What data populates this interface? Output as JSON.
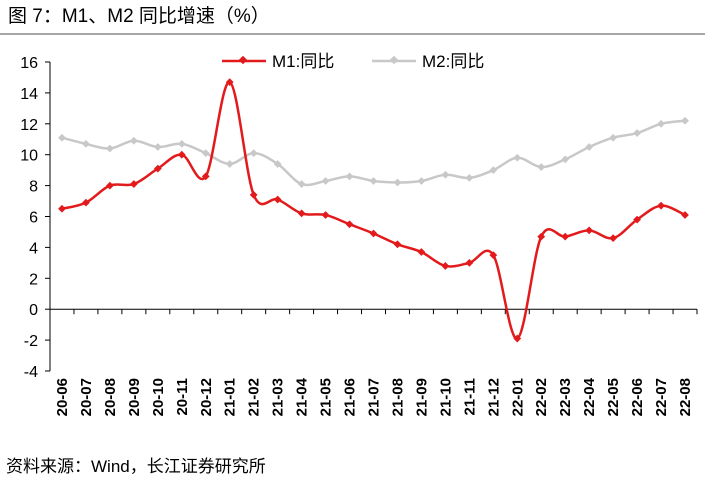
{
  "title": "图 7：M1、M2 同比增速（%）",
  "source": "资料来源：Wind，长江证券研究所",
  "colors": {
    "m1": "#e31a1c",
    "m2": "#c8c8c8",
    "axis": "#000000"
  },
  "chart_data": {
    "type": "line",
    "title": "M1、M2 同比增速（%）",
    "xlabel": "",
    "ylabel": "%",
    "ylim": [
      -4,
      16
    ],
    "yticks": [
      16,
      14,
      12,
      10,
      8,
      6,
      4,
      2,
      0,
      -2,
      -4
    ],
    "grid": false,
    "legend_position": "top-center",
    "categories": [
      "20-06",
      "20-07",
      "20-08",
      "20-09",
      "20-10",
      "20-11",
      "20-12",
      "21-01",
      "21-02",
      "21-03",
      "21-04",
      "21-05",
      "21-06",
      "21-07",
      "21-08",
      "21-09",
      "21-10",
      "21-11",
      "21-12",
      "22-01",
      "22-02",
      "22-03",
      "22-04",
      "22-05",
      "22-06",
      "22-07",
      "22-08"
    ],
    "series": [
      {
        "name": "M1:同比",
        "color": "#e31a1c",
        "values": [
          6.5,
          6.9,
          8.0,
          8.1,
          9.1,
          10.0,
          8.6,
          14.7,
          7.4,
          7.1,
          6.2,
          6.1,
          5.5,
          4.9,
          4.2,
          3.7,
          2.8,
          3.0,
          3.5,
          -1.9,
          4.7,
          4.7,
          5.1,
          4.6,
          5.8,
          6.7,
          6.1
        ]
      },
      {
        "name": "M2:同比",
        "color": "#c8c8c8",
        "values": [
          11.1,
          10.7,
          10.4,
          10.9,
          10.5,
          10.7,
          10.1,
          9.4,
          10.1,
          9.4,
          8.1,
          8.3,
          8.6,
          8.3,
          8.2,
          8.3,
          8.7,
          8.5,
          9.0,
          9.8,
          9.2,
          9.7,
          10.5,
          11.1,
          11.4,
          12.0,
          12.2
        ]
      }
    ]
  }
}
